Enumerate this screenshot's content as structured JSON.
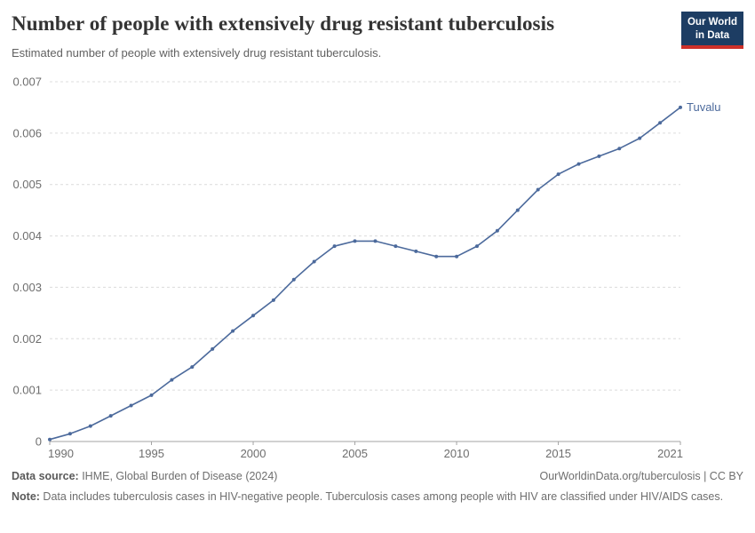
{
  "header": {
    "title": "Number of people with extensively drug resistant tuberculosis",
    "subtitle": "Estimated number of people with extensively drug resistant tuberculosis.",
    "logo": {
      "line1": "Our World",
      "line2": "in Data"
    }
  },
  "chart_data": {
    "type": "line",
    "title": "Number of people with extensively drug resistant tuberculosis",
    "subtitle": "Estimated number of people with extensively drug resistant tuberculosis.",
    "x": [
      1990,
      1991,
      1992,
      1993,
      1994,
      1995,
      1996,
      1997,
      1998,
      1999,
      2000,
      2001,
      2002,
      2003,
      2004,
      2005,
      2006,
      2007,
      2008,
      2009,
      2010,
      2011,
      2012,
      2013,
      2014,
      2015,
      2016,
      2017,
      2018,
      2019,
      2020,
      2021
    ],
    "series": [
      {
        "name": "Tuvalu",
        "color": "#4c6a9c",
        "values": [
          4e-05,
          0.00015,
          0.0003,
          0.0005,
          0.0007,
          0.0009,
          0.0012,
          0.00145,
          0.0018,
          0.00215,
          0.00245,
          0.00275,
          0.00315,
          0.0035,
          0.0038,
          0.0039,
          0.0039,
          0.0038,
          0.0037,
          0.0036,
          0.0036,
          0.0038,
          0.0041,
          0.0045,
          0.0049,
          0.0052,
          0.0054,
          0.00555,
          0.0057,
          0.0059,
          0.0062,
          0.0065
        ]
      }
    ],
    "xlabel": "",
    "ylabel": "",
    "xlim": [
      1990,
      2021
    ],
    "ylim": [
      0,
      0.007
    ],
    "xticks": [
      1990,
      1995,
      2000,
      2005,
      2010,
      2015,
      2021
    ],
    "yticks": [
      0,
      0.001,
      0.002,
      0.003,
      0.004,
      0.005,
      0.006,
      0.007
    ],
    "ytick_labels": [
      "0",
      "0.001",
      "0.002",
      "0.003",
      "0.004",
      "0.005",
      "0.006",
      "0.007"
    ],
    "grid": "horizontal-dashed",
    "legend_position": "end-of-line-label",
    "colors": {
      "line": "#4c6a9c",
      "grid": "#dcdcdc",
      "axis": "#a3a3a3",
      "tick_text": "#6e6e6e",
      "logo_bg": "#1d3d63",
      "logo_accent": "#cd3029"
    }
  },
  "footer": {
    "datasource_label": "Data source:",
    "datasource_value": " IHME, Global Burden of Disease (2024)",
    "attribution": "OurWorldinData.org/tuberculosis | CC BY",
    "note_label": "Note:",
    "note_value": " Data includes tuberculosis cases in HIV-negative people. Tuberculosis cases among people with HIV are classified under HIV/AIDS cases."
  }
}
